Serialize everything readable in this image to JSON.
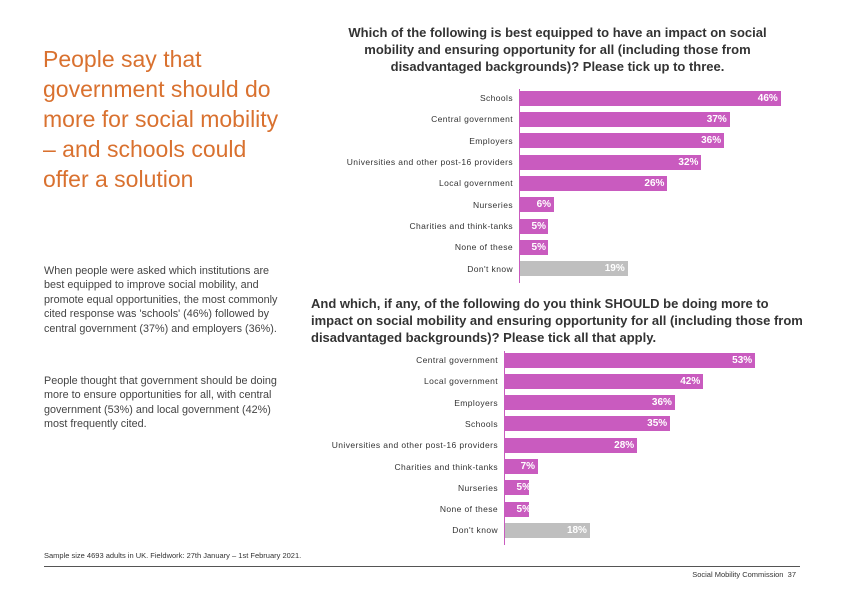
{
  "headline": "People say that government should do more for social mobility – and schools could offer a solution",
  "paragraphs": [
    "When people were asked which institutions are best equipped to improve social mobility, and promote equal opportunities, the most commonly cited response was 'schools' (46%) followed by central government (37%) and employers (36%).",
    "People thought that government should be doing more to ensure opportunities for all, with central government (53%) and local government (42%) most frequently cited."
  ],
  "footnote": "Sample size 4693 adults in UK. Fieldwork: 27th January – 1st February 2021.",
  "footer": {
    "brand": "Social Mobility Commission",
    "page": "37"
  },
  "colors": {
    "bar": "#c95bbf",
    "dont_know": "#bfbfbf",
    "headline": "#d9712f"
  },
  "chart_data": [
    {
      "type": "bar",
      "orientation": "horizontal",
      "title": "Which of the following is best equipped to have an impact on social mobility and ensuring opportunity for all (including those from disadvantaged backgrounds)? Please tick up to three.",
      "categories": [
        "Schools",
        "Central government",
        "Employers",
        "Universities and other post-16 providers",
        "Local government",
        "Nurseries",
        "Charities and think-tanks",
        "None of these",
        "Don't know"
      ],
      "values": [
        46,
        37,
        36,
        32,
        26,
        6,
        5,
        5,
        19
      ],
      "labels": [
        "46%",
        "37%",
        "36%",
        "32%",
        "26%",
        "6%",
        "5%",
        "5%",
        "19%"
      ],
      "unit": "%"
    },
    {
      "type": "bar",
      "orientation": "horizontal",
      "title": "And which, if any, of the following do you think SHOULD be doing more to impact on social mobility and ensuring opportunity for all (including those from disadvantaged backgrounds)? Please tick all that apply.",
      "categories": [
        "Central government",
        "Local government",
        "Employers",
        "Schools",
        "Universities and other post-16 providers",
        "Charities and think-tanks",
        "Nurseries",
        "None of these",
        "Don't know"
      ],
      "values": [
        53,
        42,
        36,
        35,
        28,
        7,
        5,
        5,
        18
      ],
      "labels": [
        "53%",
        "42%",
        "36%",
        "35%",
        "28%",
        "7%",
        "5%",
        "5%",
        "18%"
      ],
      "unit": "%"
    }
  ]
}
